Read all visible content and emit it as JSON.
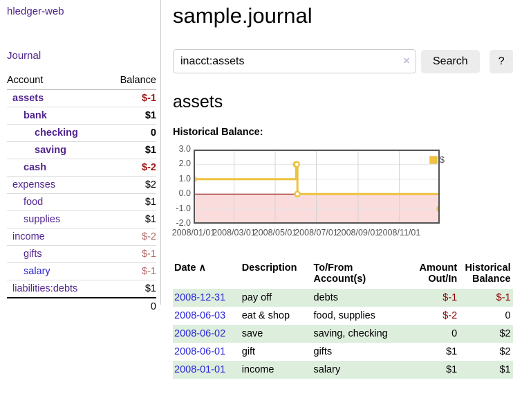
{
  "colors": {
    "purple": "#51258f",
    "blue": "#2a26d9",
    "neg-bold": "#9e1616",
    "neg": "#8b0000",
    "neg-muted": "#b06a6a",
    "stripe": "#ddeedd",
    "axis-text": "#545454",
    "series": "#edc240"
  },
  "sidebar": {
    "app_title": "hledger-web",
    "nav": [
      {
        "label": "Journal"
      }
    ],
    "accounts_table": {
      "headers": {
        "account": "Account",
        "balance": "Balance"
      },
      "rows": [
        {
          "name": "assets",
          "balance": "$-1"
        },
        {
          "name": "bank",
          "balance": "$1"
        },
        {
          "name": "checking",
          "balance": "0"
        },
        {
          "name": "saving",
          "balance": "$1"
        },
        {
          "name": "cash",
          "balance": "$-2"
        },
        {
          "name": "expenses",
          "balance": "$2"
        },
        {
          "name": "food",
          "balance": "$1"
        },
        {
          "name": "supplies",
          "balance": "$1"
        },
        {
          "name": "income",
          "balance": "$-2"
        },
        {
          "name": "gifts",
          "balance": "$-1"
        },
        {
          "name": "salary",
          "balance": "$-1"
        },
        {
          "name": "liabilities:debts",
          "balance": "$1"
        }
      ],
      "total": "0"
    }
  },
  "main": {
    "title": "sample.journal",
    "search": {
      "value": "inacct:assets",
      "clear_icon": "×",
      "button_label": "Search",
      "help_label": "?"
    },
    "account_heading": "assets",
    "chart_label": "Historical Balance:"
  },
  "chart_data": {
    "type": "line",
    "style": "step",
    "title": "Historical Balance",
    "xlabel": "",
    "ylabel": "",
    "xlim": [
      "2008/01/01",
      "2008/12/31"
    ],
    "ylim": [
      -2,
      3
    ],
    "xticks": [
      "2008/01/01",
      "2008/03/01",
      "2008/05/01",
      "2008/07/01",
      "2008/09/01",
      "2008/11/01"
    ],
    "yticks": [
      3,
      2,
      1,
      0,
      -1,
      -2
    ],
    "legend_position": "top-right",
    "grid": true,
    "series": [
      {
        "name": "$",
        "points": [
          [
            "2008-01-01",
            1
          ],
          [
            "2008-06-01",
            2
          ],
          [
            "2008-06-02",
            2
          ],
          [
            "2008-06-03",
            0
          ],
          [
            "2008-12-31",
            -1
          ]
        ]
      }
    ],
    "colors": {
      "series": "#edc240",
      "marker_fill": "#ffffff",
      "negative_region": "#fadcdc",
      "zero_line": "#8b0000",
      "grid_h": "#e6e6e6",
      "grid_v": "#d4d4d4",
      "border": "#545454"
    }
  },
  "register_table": {
    "headers": {
      "date": "Date",
      "sort_icon": "∧",
      "description": "Description",
      "accounts": "To/From Account(s)",
      "amount": "Amount Out/In",
      "balance": "Historical Balance"
    },
    "rows": [
      {
        "date": "2008-12-31",
        "description": "pay off",
        "accounts": "debts",
        "amount": "$-1",
        "balance": "$-1"
      },
      {
        "date": "2008-06-03",
        "description": "eat & shop",
        "accounts": "food, supplies",
        "amount": "$-2",
        "balance": "0"
      },
      {
        "date": "2008-06-02",
        "description": "save",
        "accounts": "saving, checking",
        "amount": "0",
        "balance": "$2"
      },
      {
        "date": "2008-06-01",
        "description": "gift",
        "accounts": "gifts",
        "amount": "$1",
        "balance": "$2"
      },
      {
        "date": "2008-01-01",
        "description": "income",
        "accounts": "salary",
        "amount": "$1",
        "balance": "$1"
      }
    ]
  }
}
